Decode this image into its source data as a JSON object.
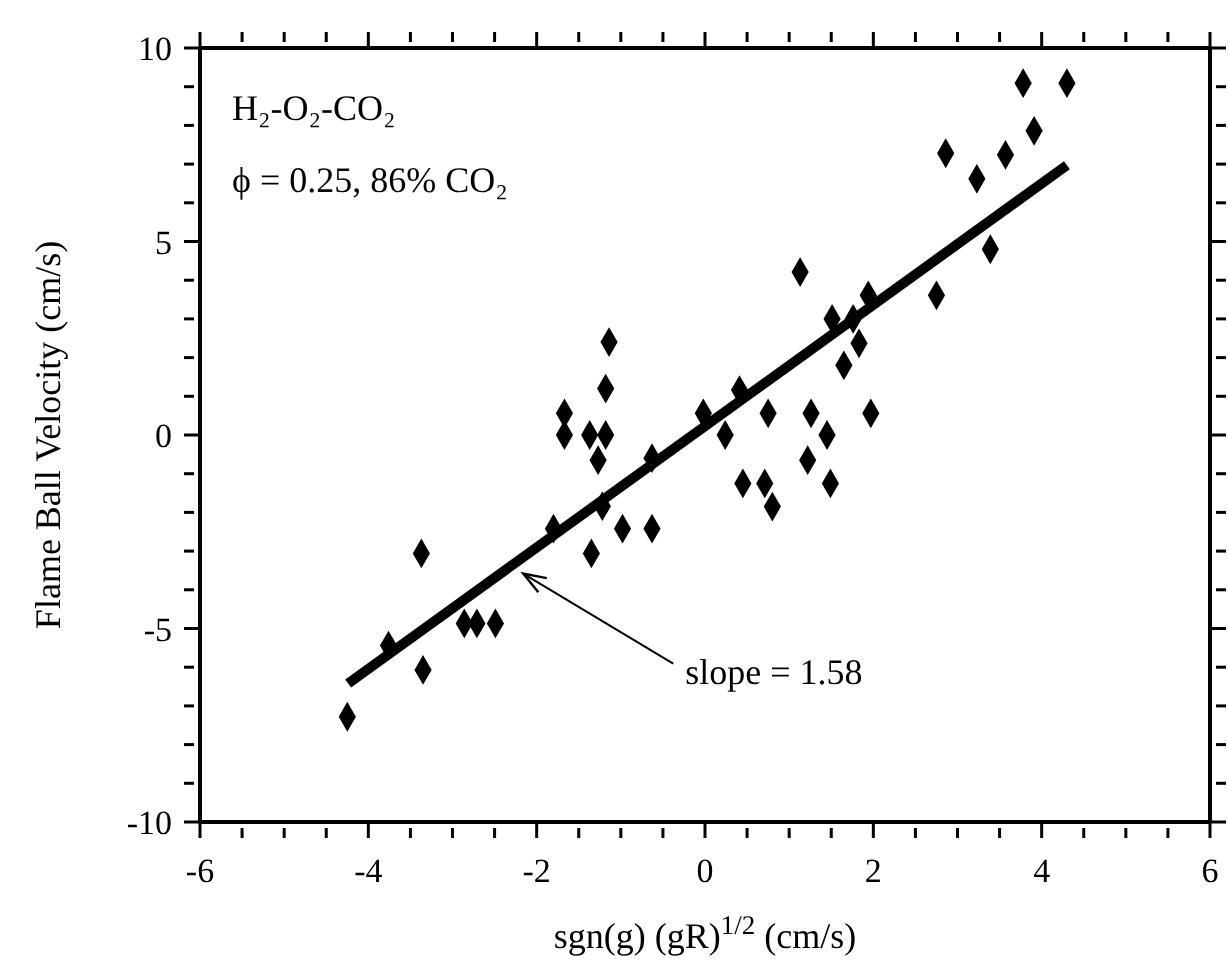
{
  "chart_data": {
    "type": "scatter",
    "xlabel": "sgn(g) (gR)$^{1/2}$  (cm/s)",
    "ylabel": "Flame Ball Velocity (cm/s)",
    "annotations": [
      "H₂-O₂-CO₂",
      "ϕ = 0.25, 86% CO₂",
      {
        "text": "slope = 1.58",
        "x": -2.16,
        "y": -3.58
      }
    ],
    "xlim": [
      -6,
      6
    ],
    "xticks": [
      -6,
      {
        "value": -5.5,
        "label": null
      },
      {
        "value": -5,
        "label": null
      },
      {
        "value": -4.5,
        "label": null
      },
      -4,
      {
        "value": -3.5,
        "label": null
      },
      {
        "value": -3,
        "label": null
      },
      {
        "value": -2.5,
        "label": null
      },
      -2,
      {
        "value": -1.5,
        "label": null
      },
      {
        "value": -1,
        "label": null
      },
      {
        "value": -0.5,
        "label": null
      },
      0,
      {
        "value": 0.5,
        "label": null
      },
      {
        "value": 1,
        "label": null
      },
      {
        "value": 1.5,
        "label": null
      },
      2,
      {
        "value": 2.5,
        "label": null
      },
      {
        "value": 3,
        "label": null
      },
      {
        "value": 3.5,
        "label": null
      },
      4,
      {
        "value": 4.5,
        "label": null
      },
      {
        "value": 5,
        "label": null
      },
      {
        "value": 5.5,
        "label": null
      },
      6
    ],
    "ylim": [
      -10,
      10
    ],
    "yticks": [
      -10,
      {
        "value": -9,
        "label": null
      },
      {
        "value": -8,
        "label": null
      },
      {
        "value": -7,
        "label": null
      },
      {
        "value": -6,
        "label": null
      },
      -5,
      {
        "value": -4,
        "label": null
      },
      {
        "value": -3,
        "label": null
      },
      {
        "value": -2,
        "label": null
      },
      {
        "value": -1,
        "label": null
      },
      0,
      {
        "value": 1,
        "label": null
      },
      {
        "value": 2,
        "label": null
      },
      {
        "value": 3,
        "label": null
      },
      {
        "value": 4,
        "label": null
      },
      5,
      {
        "value": 6,
        "label": null
      },
      {
        "value": 7,
        "label": null
      },
      {
        "value": 8,
        "label": null
      },
      {
        "value": 9,
        "label": null
      },
      10
    ],
    "marker": "diamond",
    "series": [
      {
        "color": "#000000",
        "x": [
          -4.25,
          -3.76,
          -3.35,
          -3.37,
          -2.86,
          -2.71,
          -2.49,
          -1.8,
          -1.67,
          -1.67,
          -1.37,
          -1.35,
          -1.27,
          -1.22,
          -1.18,
          -1.18,
          -1.14,
          -0.98,
          -0.63,
          -0.63,
          -0.02,
          0.24,
          0.41,
          0.45,
          0.71,
          0.75,
          0.8,
          1.13,
          1.22,
          1.26,
          1.45,
          1.49,
          1.51,
          1.65,
          1.76,
          1.83,
          1.94,
          1.97,
          2.75,
          2.86,
          3.23,
          3.39,
          3.57,
          3.78,
          3.91,
          4.3
        ],
        "values": [
          -7.28,
          -5.44,
          -6.07,
          -3.06,
          -4.87,
          -4.87,
          -4.87,
          -2.42,
          0.56,
          0,
          0,
          -3.06,
          -0.65,
          -1.84,
          1.2,
          0,
          2.4,
          -2.42,
          -2.42,
          -0.6,
          0.56,
          0,
          1.16,
          -1.25,
          -1.25,
          0.56,
          -1.85,
          4.21,
          -0.65,
          0.56,
          0,
          -1.25,
          3.0,
          1.8,
          3.0,
          2.37,
          3.61,
          0.56,
          3.61,
          7.28,
          6.62,
          4.8,
          7.24,
          9.09,
          7.86,
          9.09
        ]
      },
      {
        "type": "line",
        "color": "#000000",
        "marker": "none",
        "x": [
          -4.24,
          4.3
        ],
        "values": [
          -6.42,
          6.97
        ]
      }
    ]
  }
}
